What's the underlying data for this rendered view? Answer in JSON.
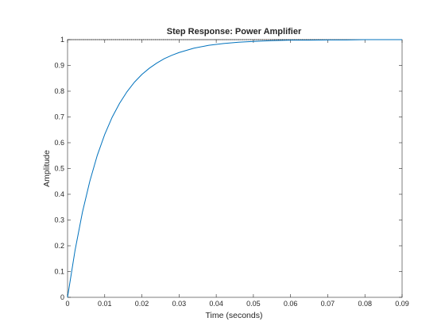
{
  "chart_data": {
    "type": "line",
    "title": "Step Response: Power Amplifier",
    "xlabel": "Time (seconds)",
    "ylabel": "Amplitude",
    "xlim": [
      0,
      0.09
    ],
    "ylim": [
      0,
      1
    ],
    "xticks": [
      0,
      0.01,
      0.02,
      0.03,
      0.04,
      0.05,
      0.06,
      0.07,
      0.08,
      0.09
    ],
    "xtick_labels": [
      "0",
      "0.01",
      "0.02",
      "0.03",
      "0.04",
      "0.05",
      "0.06",
      "0.07",
      "0.08",
      "0.09"
    ],
    "yticks": [
      0,
      0.1,
      0.2,
      0.3,
      0.4,
      0.5,
      0.6,
      0.7,
      0.8,
      0.9,
      1
    ],
    "ytick_labels": [
      "0",
      "0.1",
      "0.2",
      "0.3",
      "0.4",
      "0.5",
      "0.6",
      "0.7",
      "0.8",
      "0.9",
      "1"
    ],
    "grid": false,
    "series": [
      {
        "color": "#0072bd",
        "x": [
          0,
          0.002,
          0.004,
          0.006,
          0.008,
          0.01,
          0.012,
          0.014,
          0.016,
          0.018,
          0.02,
          0.022,
          0.024,
          0.026,
          0.028,
          0.03,
          0.034,
          0.038,
          0.042,
          0.046,
          0.05,
          0.055,
          0.06,
          0.065,
          0.07,
          0.075,
          0.08,
          0.085,
          0.09
        ],
        "y": [
          0,
          0.181,
          0.33,
          0.451,
          0.551,
          0.632,
          0.699,
          0.753,
          0.798,
          0.835,
          0.865,
          0.889,
          0.909,
          0.926,
          0.939,
          0.95,
          0.967,
          0.978,
          0.985,
          0.99,
          0.993,
          0.996,
          0.998,
          0.998,
          0.999,
          0.999,
          1.0,
          1.0,
          1.0
        ]
      }
    ],
    "reference_line": {
      "y": 1,
      "style": "dotted",
      "color": "#000000"
    }
  }
}
